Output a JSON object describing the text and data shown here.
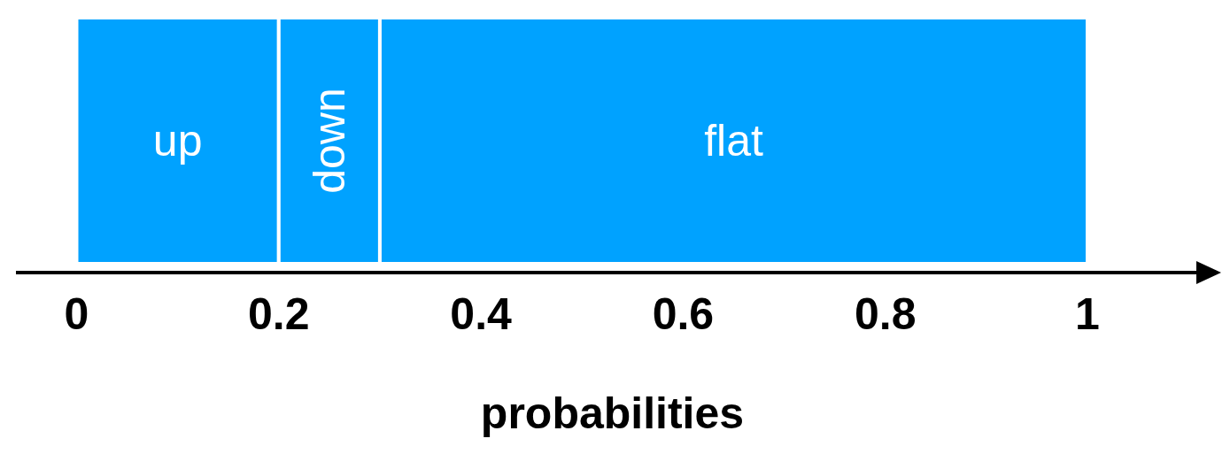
{
  "chart_data": {
    "type": "bar",
    "orientation": "horizontal",
    "stacked": true,
    "xlabel": "probabilities",
    "categories": [
      null
    ],
    "series": [
      {
        "name": "up",
        "color": "#00a2ff",
        "values": [
          0.2
        ]
      },
      {
        "name": "down",
        "color": "#00a2ff",
        "values": [
          0.1
        ]
      },
      {
        "name": "flat",
        "color": "#00a2ff",
        "values": [
          0.7
        ]
      }
    ],
    "xlim": [
      -0.06,
      1.12
    ],
    "xticks": [
      0,
      0.2,
      0.4,
      0.6,
      0.8,
      1
    ],
    "grid": false,
    "legend": false
  }
}
